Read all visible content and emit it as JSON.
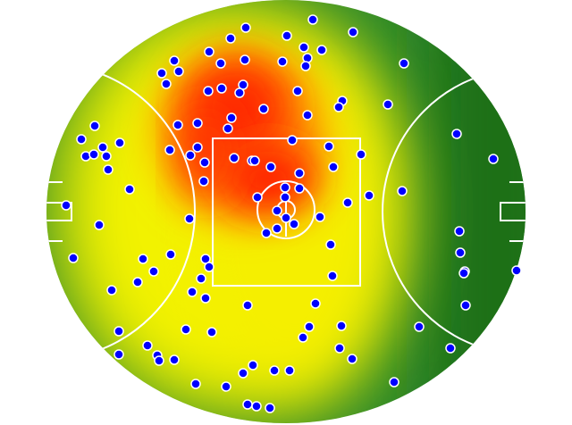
{
  "chart_data": {
    "type": "scatter",
    "color": "#0000ff",
    "x": [
      350,
      395,
      275,
      258,
      321,
      340,
      360,
      234,
      344,
      195,
      247,
      274,
      316,
      342,
      452,
      181,
      200,
      186,
      272,
      248,
      233,
      268,
      333,
      383,
      379,
      434,
      295,
      344,
      259,
      221,
      255,
      199,
      106,
      91,
      327,
      511,
      115,
      134,
      221,
      190,
      213,
      368,
      96,
      105,
      119,
      262,
      282,
      285,
      303,
      229,
      404,
      552,
      121,
      373,
      335,
      228,
      145,
      319,
      335,
      288,
      450,
      413,
      389,
      319,
      74,
      310,
      320,
      329,
      358,
      212,
      111,
      310,
      298,
      514,
      370,
      515,
      82,
      191,
      160,
      230,
      234,
      172,
      225,
      154,
      372,
      520,
      519,
      578,
      125,
      215,
      230,
      277,
      353,
      521,
      133,
      208,
      237,
      382,
      346,
      339,
      469,
      165,
      176,
      178,
      195,
      380,
      394,
      504,
      133,
      283,
      272,
      307,
      324,
      219,
      253,
      277,
      287,
      302,
      441
    ],
    "y": [
      22,
      36,
      31,
      43,
      40,
      53,
      56,
      58,
      65,
      68,
      71,
      67,
      69,
      74,
      71,
      82,
      80,
      94,
      95,
      99,
      102,
      104,
      102,
      113,
      120,
      117,
      122,
      129,
      132,
      138,
      144,
      140,
      141,
      156,
      157,
      150,
      165,
      160,
      165,
      168,
      174,
      164,
      175,
      173,
      175,
      177,
      180,
      180,
      187,
      182,
      173,
      178,
      190,
      187,
      194,
      203,
      212,
      210,
      211,
      221,
      214,
      219,
      227,
      221,
      230,
      236,
      244,
      251,
      243,
      245,
      252,
      256,
      261,
      259,
      274,
      283,
      289,
      285,
      290,
      290,
      299,
      304,
      312,
      316,
      309,
      304,
      306,
      303,
      325,
      327,
      334,
      342,
      340,
      342,
      371,
      369,
      372,
      365,
      366,
      378,
      366,
      387,
      398,
      404,
      403,
      390,
      402,
      390,
      397,
      409,
      418,
      415,
      415,
      430,
      433,
      453,
      455,
      457,
      428
    ]
  }
}
